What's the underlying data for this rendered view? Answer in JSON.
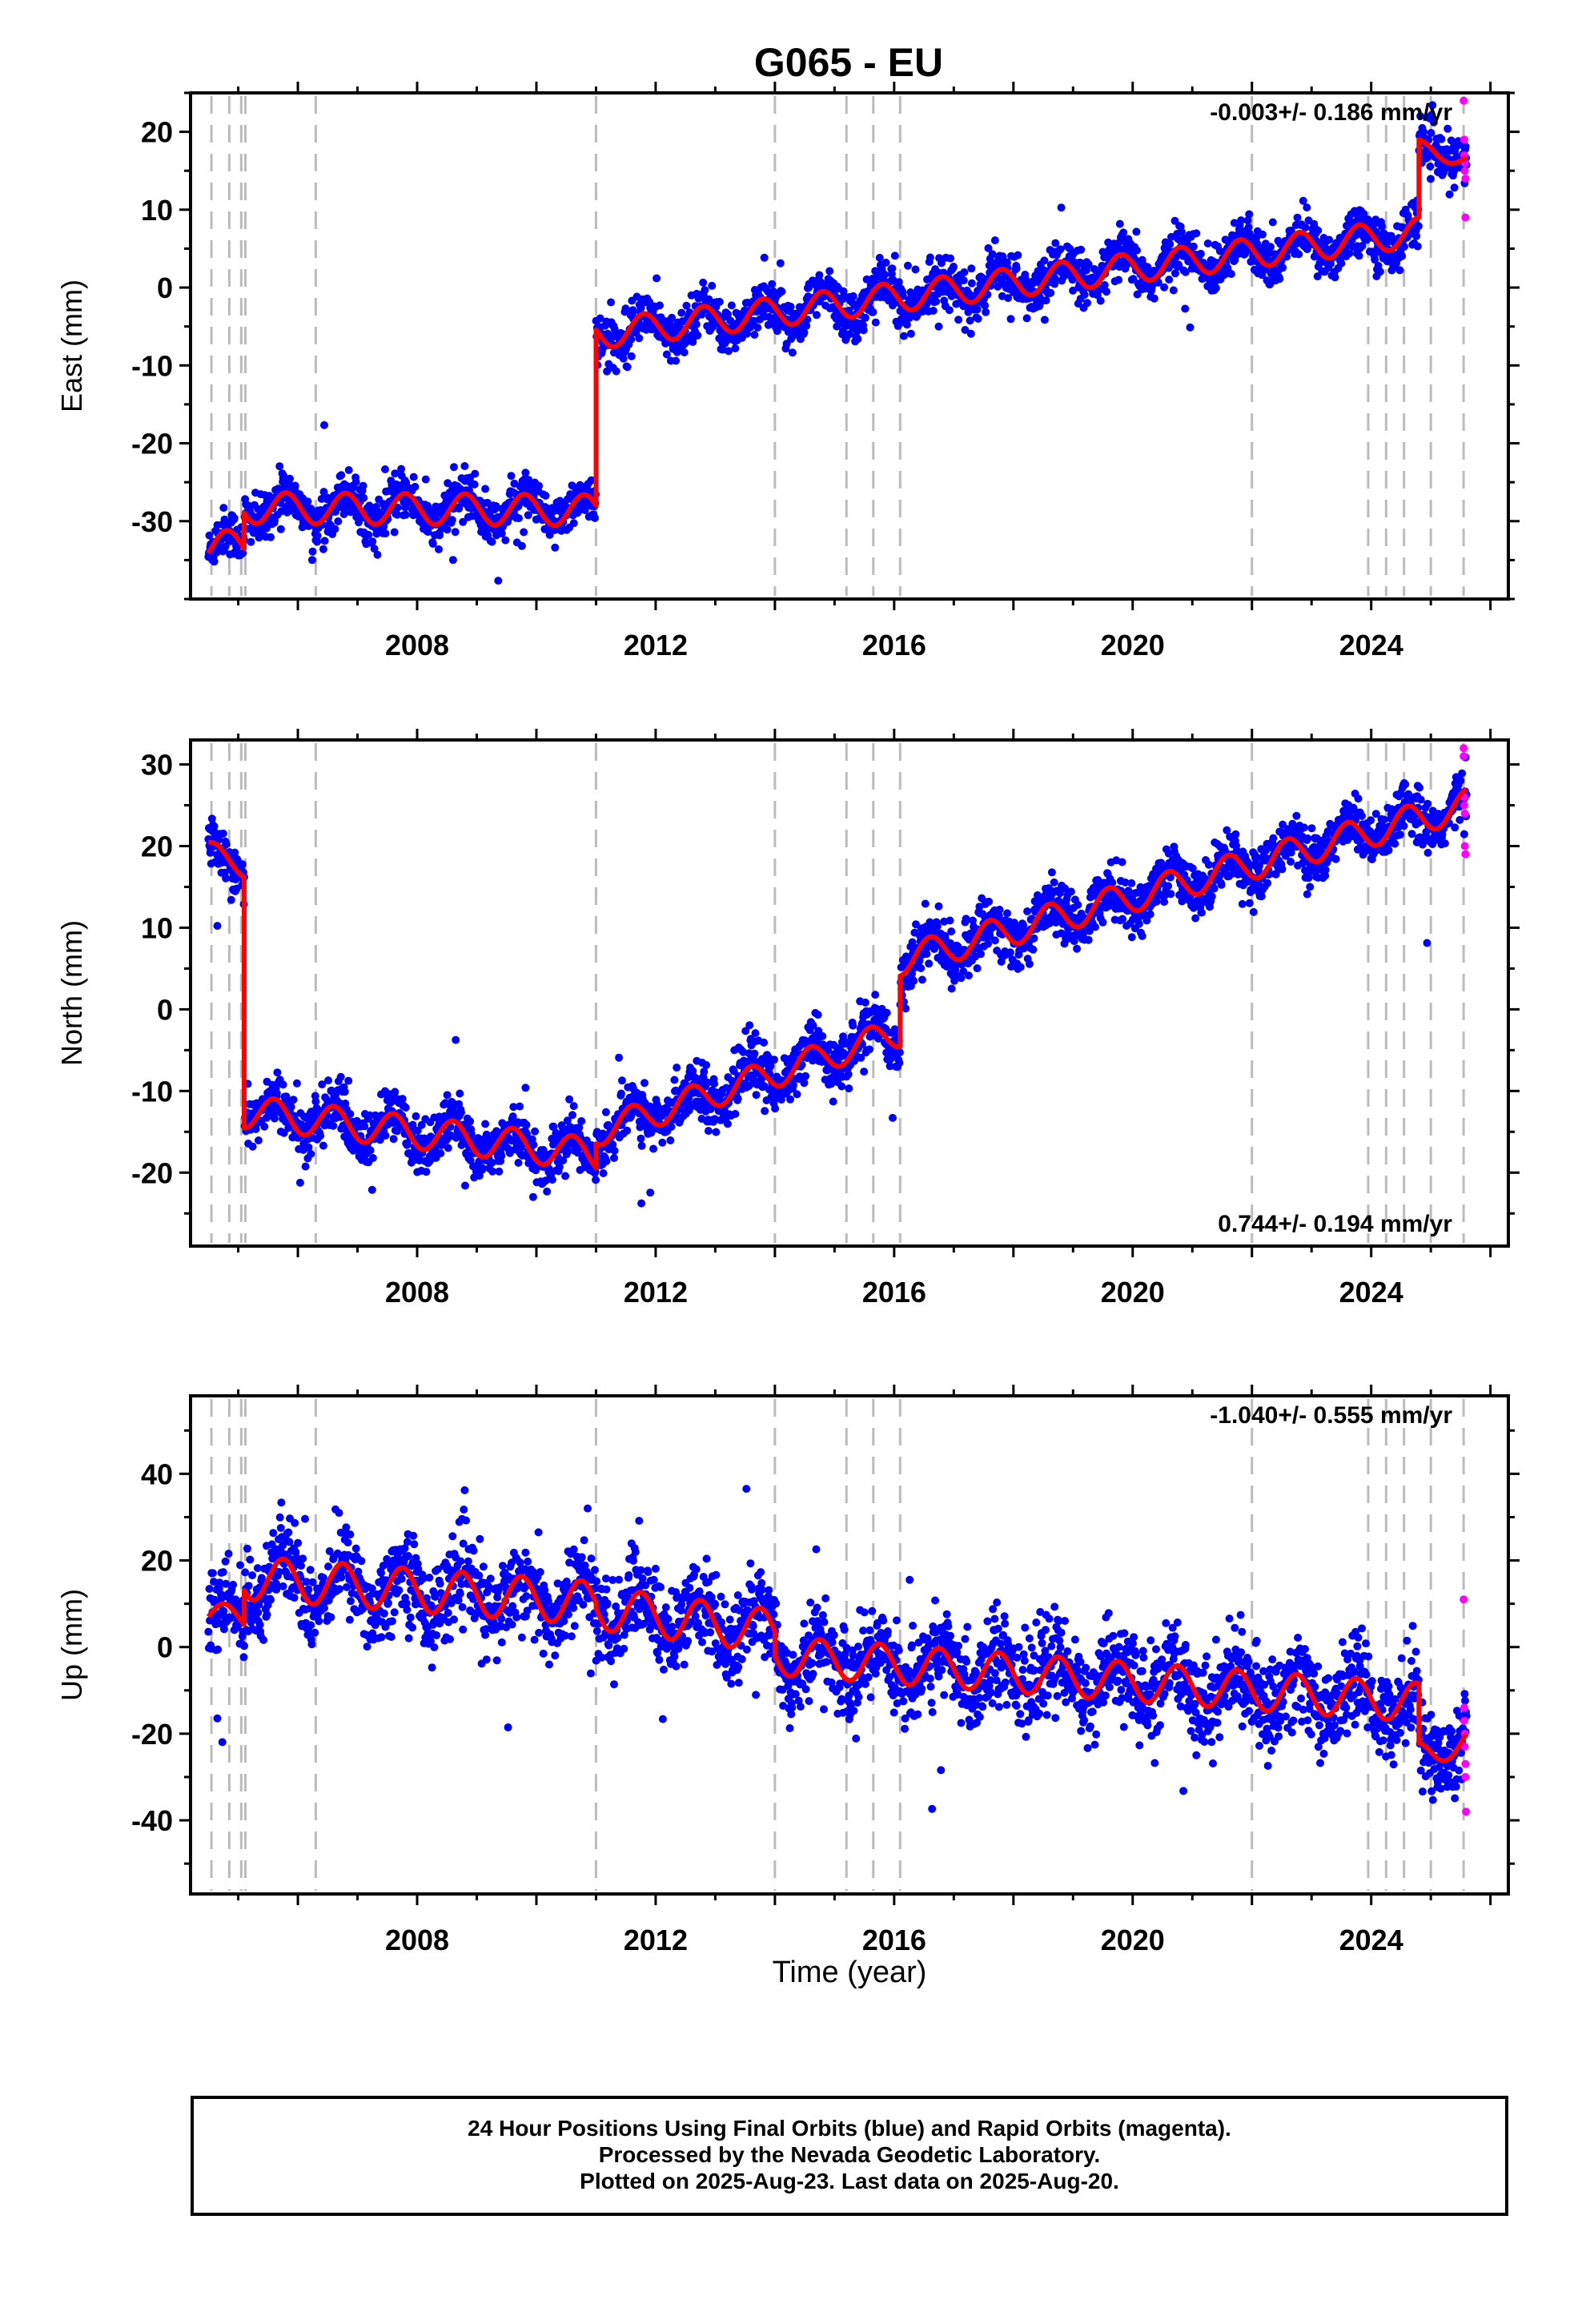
{
  "title": "G065 - EU",
  "x_axis_label": "Time (year)",
  "footer": {
    "line1": "24 Hour Positions Using Final Orbits (blue) and Rapid Orbits (magenta).",
    "line2": "Processed by the Nevada Geodetic Laboratory.",
    "line3": "Plotted on 2025-Aug-23. Last data on 2025-Aug-20."
  },
  "colors": {
    "final": "#0000ff",
    "rapid": "#ff00ff",
    "model": "#ff0000",
    "event_line": "#bbbbbb"
  },
  "chart_data": {
    "type": "scatter",
    "xlim": [
      2004.2,
      2026.3
    ],
    "x_ticks": [
      2008,
      2012,
      2016,
      2020,
      2024
    ],
    "event_lines": [
      2004.55,
      2004.85,
      2005.05,
      2005.12,
      2006.3,
      2011.0,
      2014.0,
      2015.2,
      2015.65,
      2016.1,
      2022.0,
      2023.95,
      2024.25,
      2024.55,
      2025.0,
      2025.55
    ],
    "panels": [
      {
        "id": "east",
        "ylabel": "East (mm)",
        "ylim": [
          -40,
          25
        ],
        "yticks": [
          -30,
          -20,
          -10,
          0,
          10,
          20
        ],
        "rate_text": "-0.003+/- 0.186 mm/yr",
        "rate_position": "top-right",
        "model_segments": [
          {
            "t0": 2004.5,
            "t1": 2005.1,
            "offset": -33.5,
            "trend": 1.0,
            "amp": 2.0,
            "phase": 0.55
          },
          {
            "t0": 2005.1,
            "t1": 2011.0,
            "offset": -28.3,
            "trend": -0.05,
            "amp": 2.0,
            "phase": 0.55
          },
          {
            "t0": 2011.0,
            "t1": 2024.8,
            "offset": -6.0,
            "trend": 0.95,
            "amp": 1.9,
            "phase": 0.55
          },
          {
            "t0": 2024.8,
            "t1": 2025.6,
            "offset": 18.0,
            "trend": -2.0,
            "amp": 1.0,
            "phase": 0.55
          }
        ],
        "final_scatter_sd": 1.5,
        "rapid_points": [
          [
            2025.55,
            24
          ],
          [
            2025.56,
            19
          ],
          [
            2025.56,
            17
          ],
          [
            2025.57,
            16
          ],
          [
            2025.57,
            15
          ],
          [
            2025.58,
            14
          ],
          [
            2025.58,
            9
          ]
        ]
      },
      {
        "id": "north",
        "ylabel": "North (mm)",
        "ylim": [
          -29,
          33
        ],
        "yticks": [
          -20,
          -10,
          0,
          10,
          20,
          30
        ],
        "rate_text": "0.744+/- 0.194 mm/yr",
        "rate_position": "bottom-right",
        "model_segments": [
          {
            "t0": 2004.5,
            "t1": 2005.1,
            "offset": 19.5,
            "trend": -3.5,
            "amp": 1.2,
            "phase": 0.35
          },
          {
            "t0": 2005.1,
            "t1": 2011.0,
            "offset": -12.5,
            "trend": -0.9,
            "amp": 2.0,
            "phase": 0.35
          },
          {
            "t0": 2011.0,
            "t1": 2016.1,
            "offset": -15.0,
            "trend": 2.4,
            "amp": 1.8,
            "phase": 0.35
          },
          {
            "t0": 2016.1,
            "t1": 2025.6,
            "offset": 6.0,
            "trend": 2.0,
            "amp": 1.9,
            "phase": 0.35
          }
        ],
        "final_scatter_sd": 1.6,
        "rapid_points": [
          [
            2025.55,
            32
          ],
          [
            2025.55,
            31
          ],
          [
            2025.56,
            26
          ],
          [
            2025.56,
            25
          ],
          [
            2025.57,
            24
          ],
          [
            2025.57,
            20
          ],
          [
            2025.58,
            19
          ]
        ]
      },
      {
        "id": "up",
        "ylabel": "Up (mm)",
        "ylim": [
          -57,
          58
        ],
        "yticks": [
          -40,
          -20,
          0,
          20,
          40
        ],
        "rate_text": "-1.040+/- 0.555 mm/yr",
        "rate_position": "top-right",
        "model_segments": [
          {
            "t0": 2004.5,
            "t1": 2005.1,
            "offset": 7.0,
            "trend": 0.0,
            "amp": 3.0,
            "phase": 0.5
          },
          {
            "t0": 2005.1,
            "t1": 2011.0,
            "offset": 16.0,
            "trend": -1.0,
            "amp": 5.0,
            "phase": 0.5
          },
          {
            "t0": 2011.0,
            "t1": 2014.0,
            "offset": 9.0,
            "trend": -1.8,
            "amp": 5.0,
            "phase": 0.5
          },
          {
            "t0": 2014.0,
            "t1": 2024.8,
            "offset": -2.0,
            "trend": -1.0,
            "amp": 4.5,
            "phase": 0.5
          },
          {
            "t0": 2024.8,
            "t1": 2025.6,
            "offset": -25.0,
            "trend": 4.0,
            "amp": 3.0,
            "phase": 0.5
          }
        ],
        "final_scatter_sd": 5.0,
        "rapid_points": [
          [
            2025.55,
            11
          ],
          [
            2025.56,
            -14
          ],
          [
            2025.56,
            -17
          ],
          [
            2025.57,
            -20
          ],
          [
            2025.57,
            -23
          ],
          [
            2025.58,
            -27
          ],
          [
            2025.58,
            -30
          ],
          [
            2025.59,
            -38
          ]
        ]
      }
    ]
  }
}
